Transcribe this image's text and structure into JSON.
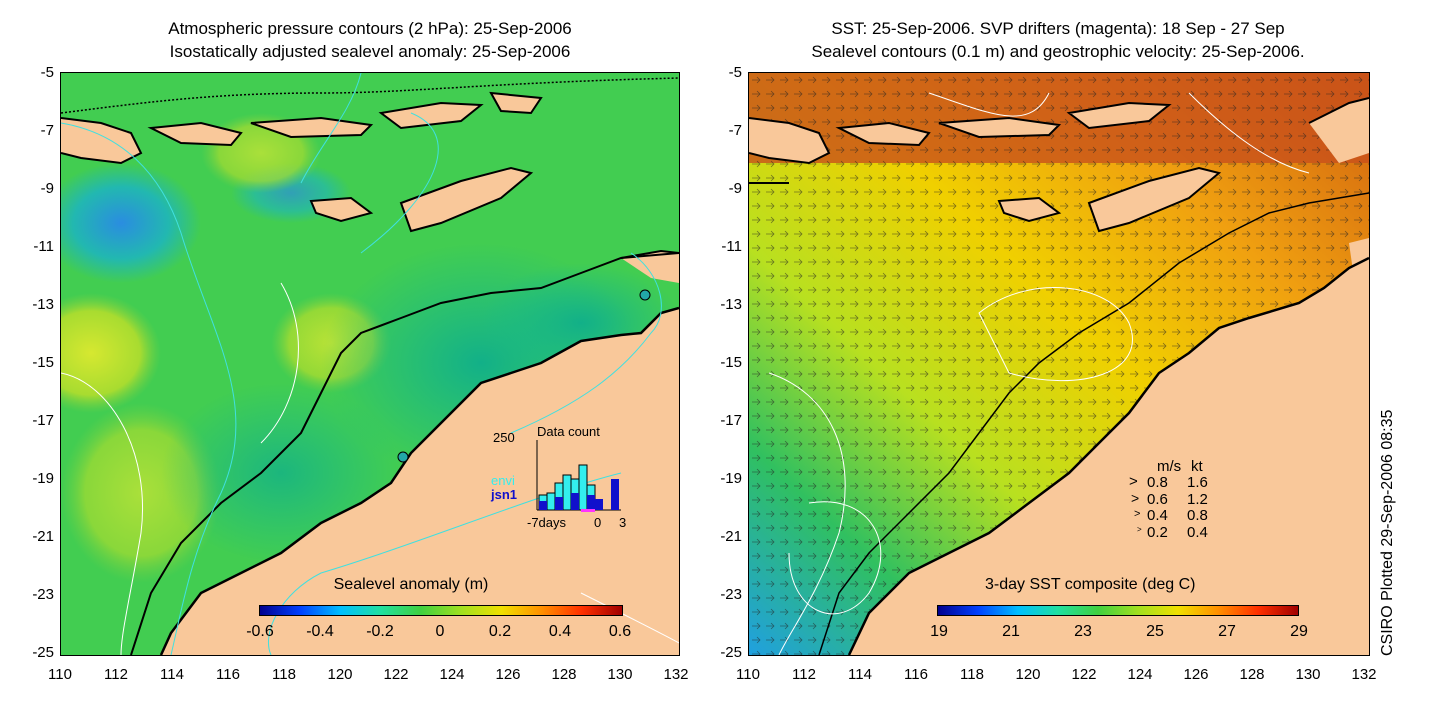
{
  "left_panel": {
    "title_line1": "Atmospheric pressure contours (2 hPa): 25-Sep-2006",
    "title_line2": "Isostatically adjusted sealevel anomaly: 25-Sep-2006",
    "colorbar": {
      "title": "Sealevel anomaly (m)",
      "ticks": [
        "-0.6",
        "-0.4",
        "-0.2",
        "0",
        "0.2",
        "0.4",
        "0.6"
      ]
    },
    "inset": {
      "title": "Data count",
      "ymax_label": "250",
      "xlabel_left": "-7days",
      "xlabel_mid": "0",
      "xlabel_right": "3",
      "legend_envi": "envi",
      "legend_jsn1": "jsn1"
    }
  },
  "right_panel": {
    "title_line1": "SST: 25-Sep-2006. SVP drifters (magenta): 18 Sep - 27 Sep",
    "title_line2": "Sealevel contours (0.1 m) and geostrophic velocity: 25-Sep-2006.",
    "colorbar": {
      "title": "3-day SST composite (deg C)",
      "ticks": [
        "19",
        "21",
        "23",
        "25",
        "27",
        "29"
      ]
    },
    "speed_legend": {
      "header_ms": "m/s",
      "header_kt": "kt",
      "rows": [
        {
          "ms": "0.8",
          "kt": "1.6"
        },
        {
          "ms": "0.6",
          "kt": "1.2"
        },
        {
          "ms": "0.4",
          "kt": "0.8"
        },
        {
          "ms": "0.2",
          "kt": "0.4"
        }
      ]
    }
  },
  "axes": {
    "y_ticks": [
      "-5",
      "-7",
      "-9",
      "-11",
      "-13",
      "-15",
      "-17",
      "-19",
      "-21",
      "-23",
      "-25"
    ],
    "x_ticks": [
      "110",
      "112",
      "114",
      "116",
      "118",
      "120",
      "122",
      "124",
      "126",
      "128",
      "130",
      "132"
    ]
  },
  "credit": "CSIRO Plotted 29-Sep-2006 08:35",
  "colors": {
    "land": "#f9c89a",
    "coast": "#000000",
    "contour_cyan": "#40e0e0",
    "contour_white": "#ffffff",
    "envi": "#33eeee",
    "jsn1": "#1010cc"
  }
}
